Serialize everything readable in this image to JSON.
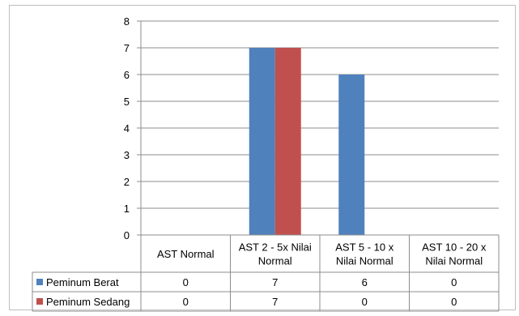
{
  "chart_data": {
    "type": "bar",
    "title": "",
    "xlabel": "",
    "ylabel": "",
    "ylim": [
      0,
      8
    ],
    "yticks": [
      0,
      1,
      2,
      3,
      4,
      5,
      6,
      7,
      8
    ],
    "grid": true,
    "legend": "data-table",
    "categories": [
      [
        "AST Normal"
      ],
      [
        "AST 2 - 5x Nilai",
        "Normal"
      ],
      [
        "AST 5 - 10 x",
        "Nilai Normal"
      ],
      [
        "AST 10 - 20 x",
        "Nilai Normal"
      ]
    ],
    "series": [
      {
        "name": "Peminum Berat",
        "color": "#4f81bd",
        "values": [
          0,
          7,
          6,
          0
        ]
      },
      {
        "name": "Peminum Sedang",
        "color": "#c0504d",
        "values": [
          0,
          7,
          0,
          0
        ]
      }
    ]
  }
}
